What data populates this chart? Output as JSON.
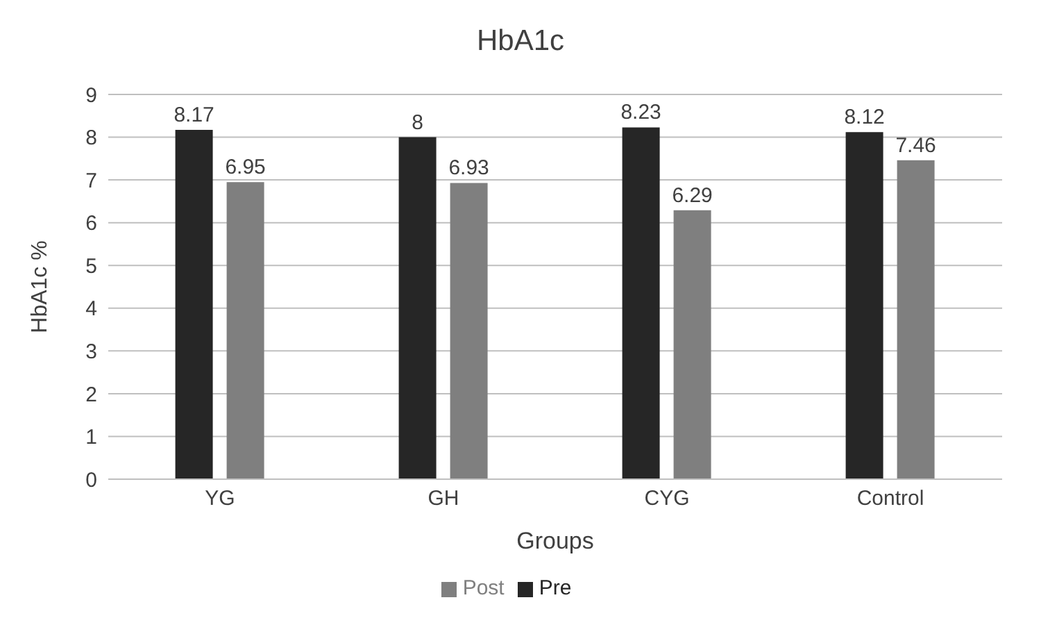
{
  "chart_data": {
    "type": "bar",
    "title": "HbA1c",
    "xlabel": "Groups",
    "ylabel": "HbA1c %",
    "categories": [
      "YG",
      "GH",
      "CYG",
      "Control"
    ],
    "series": [
      {
        "name": "Pre",
        "color": "#262626",
        "values": [
          8.17,
          8,
          8.23,
          8.12
        ]
      },
      {
        "name": "Post",
        "color": "#7f7f7f",
        "values": [
          6.95,
          6.93,
          6.29,
          7.46
        ]
      }
    ],
    "ylim": [
      0,
      9
    ],
    "yticks": [
      0,
      1,
      2,
      3,
      4,
      5,
      6,
      7,
      8,
      9
    ],
    "grid": "y",
    "legend": "bottom",
    "data_labels": true
  }
}
